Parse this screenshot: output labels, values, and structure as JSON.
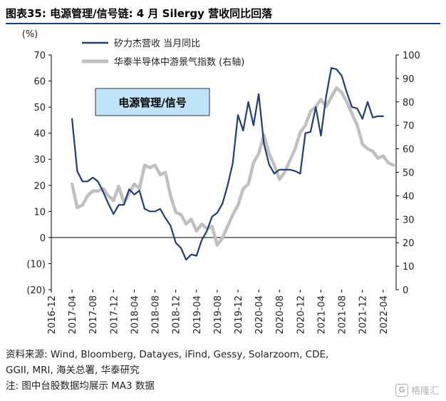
{
  "figure": {
    "title": "图表35: 电源管理/信号链: 4 月 Silergy 营收同比回落",
    "source_line1": "资料来源: Wind, Bloomberg, Datayes, iFind, Gessy, Solarzoom, CDE,",
    "source_line2": "GGII, MRI, 海关总署, 华泰研究",
    "note": "注: 图中台股数据均展示 MA3 数据",
    "watermark": "格隆汇"
  },
  "colors": {
    "series1": "#1f3d7a",
    "series2": "#c0c0c0",
    "annotation_fill": "#bfe3f7",
    "title_rule": "#1c3f7c"
  },
  "chart_data": {
    "type": "line",
    "left_axis": {
      "unit_label": "(%)",
      "ylim": [
        -20,
        70
      ],
      "ticks": [
        "70",
        "60",
        "50",
        "40",
        "30",
        "20",
        "10",
        "0",
        "(10)",
        "(20)"
      ],
      "tick_values": [
        70,
        60,
        50,
        40,
        30,
        20,
        10,
        0,
        -10,
        -20
      ]
    },
    "right_axis": {
      "ylim": [
        0,
        100
      ],
      "ticks": [
        "100",
        "90",
        "80",
        "70",
        "60",
        "50",
        "40",
        "30",
        "20",
        "10",
        "0"
      ],
      "tick_values": [
        100,
        90,
        80,
        70,
        60,
        50,
        40,
        30,
        20,
        10,
        0
      ]
    },
    "x_ticks": [
      "2016-12",
      "2017-04",
      "2017-08",
      "2017-12",
      "2018-04",
      "2018-08",
      "2018-12",
      "2019-04",
      "2019-08",
      "2019-12",
      "2020-04",
      "2020-08",
      "2020-12",
      "2021-04",
      "2021-08",
      "2021-12",
      "2022-04"
    ],
    "annotation": "电源管理/信号",
    "legend_position": "top-center",
    "grid": false,
    "series": [
      {
        "name": "矽力杰营收 当月同比",
        "axis": "left",
        "x": [
          "2017-04",
          "2017-05",
          "2017-06",
          "2017-07",
          "2017-08",
          "2017-09",
          "2017-10",
          "2017-11",
          "2017-12",
          "2018-01",
          "2018-02",
          "2018-03",
          "2018-04",
          "2018-05",
          "2018-06",
          "2018-07",
          "2018-08",
          "2018-09",
          "2018-10",
          "2018-11",
          "2018-12",
          "2019-01",
          "2019-02",
          "2019-03",
          "2019-04",
          "2019-05",
          "2019-06",
          "2019-07",
          "2019-08",
          "2019-09",
          "2019-10",
          "2019-11",
          "2019-12",
          "2020-01",
          "2020-02",
          "2020-03",
          "2020-04",
          "2020-05",
          "2020-06",
          "2020-07",
          "2020-08",
          "2020-09",
          "2020-10",
          "2020-11",
          "2020-12",
          "2021-01",
          "2021-02",
          "2021-03",
          "2021-04",
          "2021-05",
          "2021-06",
          "2021-07",
          "2021-08",
          "2021-09",
          "2021-10",
          "2021-11",
          "2021-12",
          "2022-01",
          "2022-02",
          "2022-03",
          "2022-04"
        ],
        "y": [
          45.5,
          25.5,
          21.5,
          21.5,
          23,
          21.5,
          17.5,
          13,
          9,
          12.5,
          12.5,
          18.5,
          16.5,
          18,
          11,
          10,
          10,
          11,
          7.5,
          4.5,
          -2,
          -4,
          -8.5,
          -6.5,
          -7,
          -1,
          2.5,
          8,
          9.5,
          13,
          20,
          28.5,
          47,
          41,
          52,
          43,
          55,
          36,
          28,
          24.5,
          26,
          26,
          26,
          25.5,
          24.5,
          40,
          40.5,
          50,
          39,
          54,
          65,
          64.5,
          62,
          55.5,
          50,
          49.5,
          45.5,
          52,
          46,
          46.5,
          46.5
        ]
      },
      {
        "name": "华泰半导体中游景气指数 (右轴)",
        "axis": "right",
        "x": [
          "2017-04",
          "2017-05",
          "2017-06",
          "2017-07",
          "2017-08",
          "2017-09",
          "2017-10",
          "2017-11",
          "2017-12",
          "2018-01",
          "2018-02",
          "2018-03",
          "2018-04",
          "2018-05",
          "2018-06",
          "2018-07",
          "2018-08",
          "2018-09",
          "2018-10",
          "2018-11",
          "2018-12",
          "2019-01",
          "2019-02",
          "2019-03",
          "2019-04",
          "2019-05",
          "2019-06",
          "2019-07",
          "2019-08",
          "2019-09",
          "2019-10",
          "2019-11",
          "2019-12",
          "2020-01",
          "2020-02",
          "2020-03",
          "2020-04",
          "2020-05",
          "2020-06",
          "2020-07",
          "2020-08",
          "2020-09",
          "2020-10",
          "2020-11",
          "2020-12",
          "2021-01",
          "2021-02",
          "2021-03",
          "2021-04",
          "2021-05",
          "2021-06",
          "2021-07",
          "2021-08",
          "2021-09",
          "2021-10",
          "2021-11",
          "2021-12",
          "2022-01",
          "2022-02",
          "2022-03",
          "2022-04",
          "2022-05",
          "2022-06"
        ],
        "y": [
          45,
          35,
          36,
          40,
          42,
          42,
          43,
          40,
          38,
          44,
          37,
          41,
          45,
          43,
          53,
          52,
          53,
          49,
          50,
          40,
          33,
          32,
          28,
          30,
          25,
          28,
          26,
          27,
          19,
          22,
          27,
          32,
          36,
          43,
          45,
          54,
          58,
          66,
          58,
          53,
          47,
          50,
          55,
          60,
          67,
          70,
          76,
          78,
          81,
          78,
          82,
          86,
          84,
          80,
          75,
          70,
          62,
          60,
          59,
          56,
          57,
          54,
          53
        ]
      }
    ]
  }
}
